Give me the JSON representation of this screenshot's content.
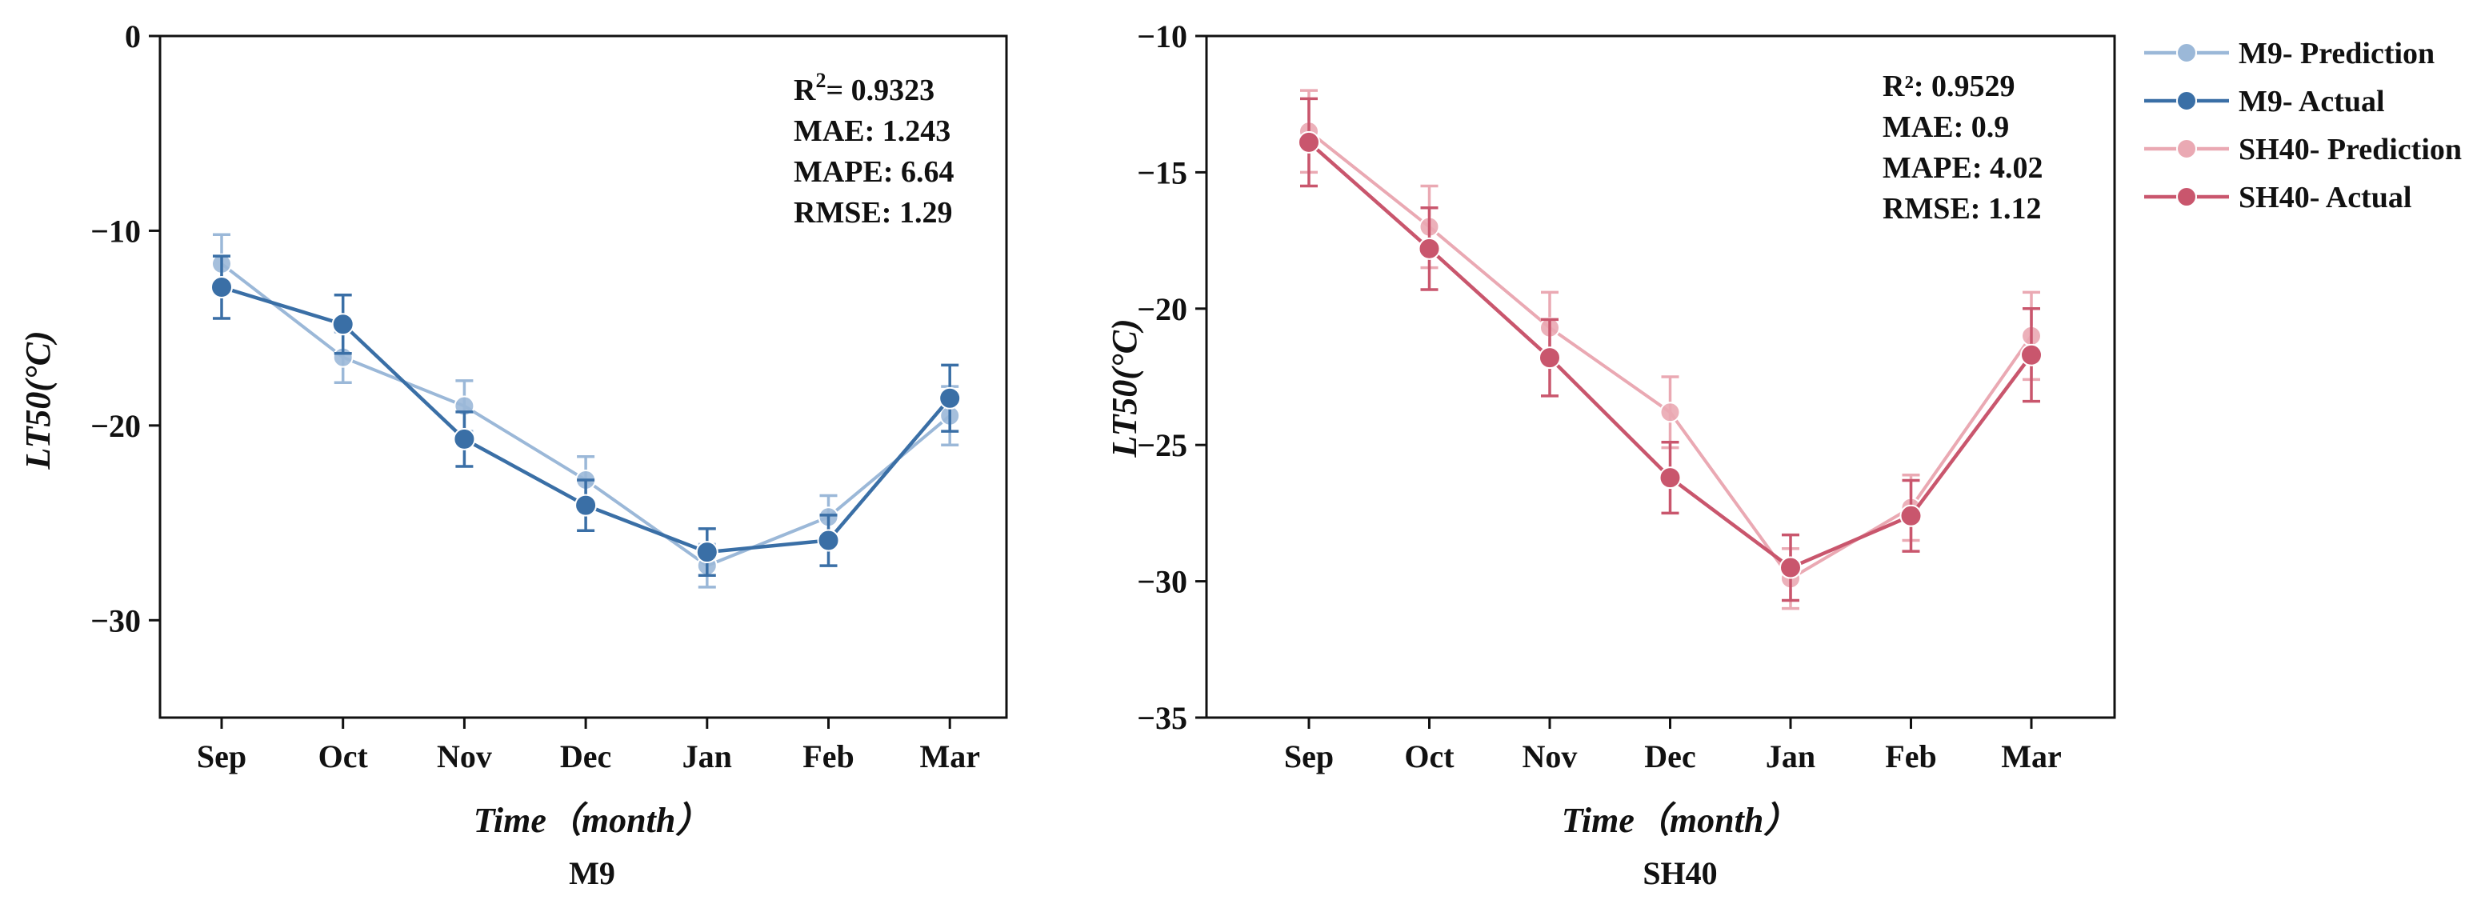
{
  "chart_data": [
    {
      "type": "line",
      "panel_label": "M9",
      "xlabel": "Time（month）",
      "ylabel": "LT50(°C)",
      "categories": [
        "Sep",
        "Oct",
        "Nov",
        "Dec",
        "Jan",
        "Feb",
        "Mar"
      ],
      "ylim": [
        -35,
        0
      ],
      "yticks": [
        0,
        -10,
        -20,
        -30
      ],
      "stats": [
        {
          "label": "R",
          "sup": "2",
          "value": "= 0.9323"
        },
        {
          "label": "MAE: 1.243"
        },
        {
          "label": "MAPE: 6.64"
        },
        {
          "label": "RMSE: 1.29"
        }
      ],
      "series": [
        {
          "name": "M9- Prediction",
          "color": "#9bb8d8",
          "values": [
            -11.7,
            -16.5,
            -19.0,
            -22.8,
            -27.2,
            -24.7,
            -19.5
          ],
          "errors": [
            1.5,
            1.3,
            1.3,
            1.2,
            1.1,
            1.1,
            1.5
          ]
        },
        {
          "name": "M9- Actual",
          "color": "#3a6fa6",
          "values": [
            -12.9,
            -14.8,
            -20.7,
            -24.1,
            -26.5,
            -25.9,
            -18.6
          ],
          "errors": [
            1.6,
            1.5,
            1.4,
            1.3,
            1.2,
            1.3,
            1.7
          ]
        }
      ]
    },
    {
      "type": "line",
      "panel_label": "SH40",
      "xlabel": "Time（month）",
      "ylabel": "LT50(°C)",
      "categories": [
        "Sep",
        "Oct",
        "Nov",
        "Dec",
        "Jan",
        "Feb",
        "Mar"
      ],
      "ylim": [
        -35,
        -10
      ],
      "yticks": [
        -10,
        -15,
        -20,
        -25,
        -30,
        -35
      ],
      "stats": [
        {
          "label": "R²: 0.9529"
        },
        {
          "label": "MAE: 0.9"
        },
        {
          "label": "MAPE: 4.02"
        },
        {
          "label": "RMSE: 1.12"
        }
      ],
      "series": [
        {
          "name": "SH40- Prediction",
          "color": "#eaa9b3",
          "values": [
            -13.5,
            -17.0,
            -20.7,
            -23.8,
            -29.9,
            -27.3,
            -21.0
          ],
          "errors": [
            1.5,
            1.5,
            1.3,
            1.3,
            1.1,
            1.2,
            1.6
          ]
        },
        {
          "name": "SH40- Actual",
          "color": "#c9566d",
          "values": [
            -13.9,
            -17.8,
            -21.8,
            -26.2,
            -29.5,
            -27.6,
            -21.7
          ],
          "errors": [
            1.6,
            1.5,
            1.4,
            1.3,
            1.2,
            1.3,
            1.7
          ]
        }
      ]
    }
  ]
}
